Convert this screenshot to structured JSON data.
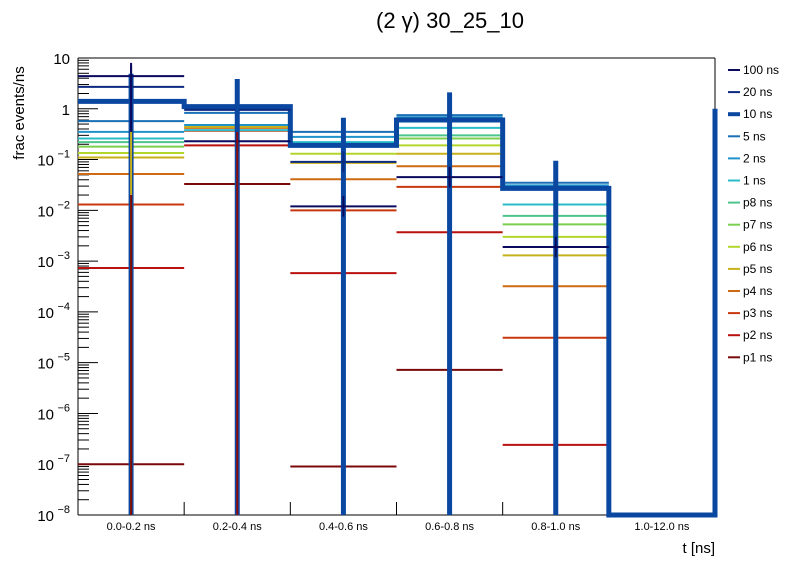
{
  "chart_data": {
    "type": "line",
    "subtype": "step-histogram",
    "title": "(2 γ) 30_25_10",
    "xlabel": "t [ns]",
    "ylabel": "frac events/ns",
    "yscale": "log",
    "ylim": [
      1e-08,
      10
    ],
    "y_tick_labels": [
      {
        "value": 10,
        "base": "10",
        "exp": ""
      },
      {
        "value": 1,
        "base": "1",
        "exp": ""
      },
      {
        "value": 0.1,
        "base": "10",
        "exp": "−1"
      },
      {
        "value": 0.01,
        "base": "10",
        "exp": "−2"
      },
      {
        "value": 0.001,
        "base": "10",
        "exp": "−3"
      },
      {
        "value": 0.0001,
        "base": "10",
        "exp": "−4"
      },
      {
        "value": 1e-05,
        "base": "10",
        "exp": "−5"
      },
      {
        "value": 1e-06,
        "base": "10",
        "exp": "−6"
      },
      {
        "value": 1e-07,
        "base": "10",
        "exp": "−7"
      },
      {
        "value": 1e-08,
        "base": "10",
        "exp": "−8"
      }
    ],
    "categories": [
      "0.0-0.2 ns",
      "0.2-0.4 ns",
      "0.4-0.6 ns",
      "0.6-0.8 ns",
      "0.8-1.0 ns",
      "1.0-12.0 ns"
    ],
    "legend_position": "right",
    "grid": false,
    "series": [
      {
        "name": "100 ns",
        "color": "#0a0a5e",
        "values": [
          4.4,
          0.23,
          0.012,
          0.045,
          0.0019,
          null
        ]
      },
      {
        "name": "20 ns",
        "color": "#0c2a80",
        "values": [
          2.7,
          0.95,
          0.09,
          null,
          null,
          null
        ]
      },
      {
        "name": "10 ns",
        "color": "#0a47a0",
        "thick": true,
        "values": [
          1.4,
          1.1,
          0.19,
          0.6,
          0.027,
          1e-08
        ]
      },
      {
        "name": "5 ns",
        "color": "#1a6fb5",
        "values": [
          0.57,
          0.83,
          0.35,
          0.75,
          0.035,
          null
        ]
      },
      {
        "name": "2 ns",
        "color": "#1f93c9",
        "values": [
          0.35,
          0.48,
          0.28,
          0.68,
          0.031,
          null
        ]
      },
      {
        "name": "1 ns",
        "color": "#29bcc8",
        "values": [
          0.26,
          0.38,
          0.22,
          0.42,
          0.013,
          null
        ]
      },
      {
        "name": "p8 ns",
        "color": "#4cc48c",
        "values": [
          0.22,
          null,
          0.2,
          0.3,
          0.0078,
          null
        ]
      },
      {
        "name": "p7 ns",
        "color": "#7bcf4e",
        "values": [
          0.18,
          null,
          null,
          0.26,
          0.0053,
          null
        ]
      },
      {
        "name": "p6 ns",
        "color": "#b3d62d",
        "values": [
          0.135,
          null,
          0.13,
          0.19,
          0.003,
          null
        ]
      },
      {
        "name": "p5 ns",
        "color": "#c8b21c",
        "values": [
          0.11,
          0.44,
          0.086,
          0.13,
          0.0013,
          null
        ]
      },
      {
        "name": "p4 ns",
        "color": "#cf6a14",
        "values": [
          0.052,
          0.42,
          0.041,
          0.074,
          0.00032,
          null
        ]
      },
      {
        "name": "p3 ns",
        "color": "#c8380f",
        "values": [
          0.013,
          0.37,
          0.01,
          0.029,
          3.1e-05,
          null
        ]
      },
      {
        "name": "p2 ns",
        "color": "#b8110f",
        "values": [
          0.00073,
          0.19,
          0.00058,
          0.0037,
          2.4e-07,
          null
        ]
      },
      {
        "name": "p1 ns",
        "color": "#7a0a0a",
        "values": [
          1e-07,
          0.033,
          9e-08,
          7.2e-06,
          null,
          null
        ]
      }
    ]
  }
}
